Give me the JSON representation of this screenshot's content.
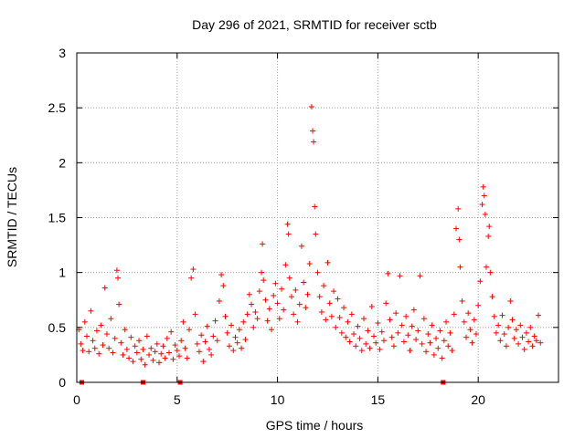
{
  "chart_data": {
    "type": "scatter",
    "title": "Day 296 of 2021, SRMTID for receiver sctb",
    "xlabel": "GPS time / hours",
    "ylabel": "SRMTID / TECUs",
    "xlim": [
      0,
      24
    ],
    "ylim": [
      0,
      3
    ],
    "xticks": [
      0,
      5,
      10,
      15,
      20
    ],
    "yticks": [
      0,
      0.5,
      1,
      1.5,
      2,
      2.5,
      3
    ],
    "ytick_labels": [
      "0",
      "0.5",
      "1",
      "1.5",
      "2",
      "2.5",
      "3"
    ],
    "grid": true,
    "marker": "+",
    "color": "#ff0000",
    "series": [
      {
        "name": "SRMTID",
        "points": [
          [
            0.1,
            0.48
          ],
          [
            0.2,
            0.35
          ],
          [
            0.3,
            0.29
          ],
          [
            0.4,
            0.55
          ],
          [
            0.5,
            0.42
          ],
          [
            0.6,
            0.28
          ],
          [
            0.7,
            0.65
          ],
          [
            0.8,
            0.38
          ],
          [
            0.9,
            0.31
          ],
          [
            1.0,
            0.47
          ],
          [
            1.1,
            0.26
          ],
          [
            1.2,
            0.52
          ],
          [
            1.3,
            0.34
          ],
          [
            1.4,
            0.86
          ],
          [
            1.5,
            0.44
          ],
          [
            1.6,
            0.31
          ],
          [
            1.7,
            0.58
          ],
          [
            1.8,
            0.27
          ],
          [
            1.9,
            0.4
          ],
          [
            2.0,
            1.02
          ],
          [
            2.05,
            0.95
          ],
          [
            2.1,
            0.71
          ],
          [
            2.2,
            0.36
          ],
          [
            2.3,
            0.25
          ],
          [
            2.4,
            0.48
          ],
          [
            2.5,
            0.3
          ],
          [
            2.6,
            0.22
          ],
          [
            2.7,
            0.41
          ],
          [
            2.8,
            0.19
          ],
          [
            2.9,
            0.33
          ],
          [
            3.0,
            0.27
          ],
          [
            3.1,
            0.38
          ],
          [
            3.2,
            0.21
          ],
          [
            3.3,
            0.3
          ],
          [
            3.4,
            0.16
          ],
          [
            3.5,
            0.42
          ],
          [
            3.6,
            0.25
          ],
          [
            3.7,
            0.31
          ],
          [
            3.8,
            0.2
          ],
          [
            3.9,
            0.28
          ],
          [
            4.0,
            0.35
          ],
          [
            4.1,
            0.18
          ],
          [
            4.2,
            0.26
          ],
          [
            4.3,
            0.33
          ],
          [
            4.4,
            0.22
          ],
          [
            4.5,
            0.4
          ],
          [
            4.6,
            0.27
          ],
          [
            4.7,
            0.46
          ],
          [
            4.8,
            0.21
          ],
          [
            4.9,
            0.34
          ],
          [
            5.0,
            0.29
          ],
          [
            5.1,
            0.24
          ],
          [
            5.2,
            0.38
          ],
          [
            5.3,
            0.55
          ],
          [
            5.4,
            0.31
          ],
          [
            5.5,
            0.22
          ],
          [
            5.6,
            0.48
          ],
          [
            5.7,
            0.95
          ],
          [
            5.8,
            1.03
          ],
          [
            5.9,
            0.62
          ],
          [
            6.0,
            0.35
          ],
          [
            6.1,
            0.28
          ],
          [
            6.2,
            0.43
          ],
          [
            6.3,
            0.19
          ],
          [
            6.4,
            0.37
          ],
          [
            6.5,
            0.51
          ],
          [
            6.6,
            0.3
          ],
          [
            6.7,
            0.25
          ],
          [
            6.8,
            0.42
          ],
          [
            6.9,
            0.56
          ],
          [
            7.0,
            0.38
          ],
          [
            7.1,
            0.74
          ],
          [
            7.2,
            0.98
          ],
          [
            7.3,
            0.88
          ],
          [
            7.4,
            0.6
          ],
          [
            7.5,
            0.45
          ],
          [
            7.6,
            0.33
          ],
          [
            7.7,
            0.52
          ],
          [
            7.8,
            0.29
          ],
          [
            7.9,
            0.41
          ],
          [
            8.0,
            0.36
          ],
          [
            8.1,
            0.48
          ],
          [
            8.2,
            0.31
          ],
          [
            8.3,
            0.55
          ],
          [
            8.4,
            0.39
          ],
          [
            8.5,
            0.62
          ],
          [
            8.6,
            0.8
          ],
          [
            8.7,
            0.71
          ],
          [
            8.8,
            0.5
          ],
          [
            8.9,
            0.64
          ],
          [
            9.0,
            0.58
          ],
          [
            9.1,
            0.83
          ],
          [
            9.2,
            1.0
          ],
          [
            9.25,
            1.26
          ],
          [
            9.3,
            0.93
          ],
          [
            9.4,
            0.75
          ],
          [
            9.5,
            0.56
          ],
          [
            9.6,
            0.67
          ],
          [
            9.7,
            0.48
          ],
          [
            9.8,
            0.79
          ],
          [
            9.9,
            0.9
          ],
          [
            10.0,
            0.72
          ],
          [
            10.1,
            0.58
          ],
          [
            10.2,
            0.85
          ],
          [
            10.3,
            0.66
          ],
          [
            10.4,
            1.07
          ],
          [
            10.5,
            1.44
          ],
          [
            10.55,
            1.35
          ],
          [
            10.6,
            0.95
          ],
          [
            10.7,
            0.78
          ],
          [
            10.8,
            0.62
          ],
          [
            10.9,
            0.84
          ],
          [
            11.0,
            0.55
          ],
          [
            11.1,
            0.71
          ],
          [
            11.2,
            1.24
          ],
          [
            11.3,
            0.91
          ],
          [
            11.4,
            0.68
          ],
          [
            11.5,
            0.8
          ],
          [
            11.6,
            1.08
          ],
          [
            11.7,
            2.51
          ],
          [
            11.75,
            2.29
          ],
          [
            11.8,
            2.19
          ],
          [
            11.85,
            1.6
          ],
          [
            11.9,
            1.35
          ],
          [
            12.0,
            1.0
          ],
          [
            12.1,
            0.78
          ],
          [
            12.2,
            0.64
          ],
          [
            12.3,
            0.88
          ],
          [
            12.4,
            0.57
          ],
          [
            12.5,
            1.09
          ],
          [
            12.6,
            0.72
          ],
          [
            12.7,
            0.6
          ],
          [
            12.8,
            0.83
          ],
          [
            12.9,
            0.5
          ],
          [
            13.0,
            0.76
          ],
          [
            13.1,
            0.59
          ],
          [
            13.2,
            0.45
          ],
          [
            13.3,
            0.68
          ],
          [
            13.4,
            0.41
          ],
          [
            13.5,
            0.55
          ],
          [
            13.6,
            0.37
          ],
          [
            13.7,
            0.62
          ],
          [
            13.8,
            0.44
          ],
          [
            13.9,
            0.33
          ],
          [
            14.0,
            0.51
          ],
          [
            14.1,
            0.4
          ],
          [
            14.2,
            0.29
          ],
          [
            14.3,
            0.58
          ],
          [
            14.4,
            0.35
          ],
          [
            14.5,
            0.47
          ],
          [
            14.6,
            0.31
          ],
          [
            14.7,
            0.69
          ],
          [
            14.8,
            0.42
          ],
          [
            14.9,
            0.36
          ],
          [
            15.0,
            0.54
          ],
          [
            15.1,
            0.3
          ],
          [
            15.2,
            0.46
          ],
          [
            15.3,
            0.38
          ],
          [
            15.4,
            0.72
          ],
          [
            15.5,
            0.99
          ],
          [
            15.6,
            0.57
          ],
          [
            15.7,
            0.41
          ],
          [
            15.8,
            0.33
          ],
          [
            15.9,
            0.63
          ],
          [
            16.0,
            0.45
          ],
          [
            16.1,
            0.97
          ],
          [
            16.2,
            0.52
          ],
          [
            16.3,
            0.37
          ],
          [
            16.4,
            0.6
          ],
          [
            16.5,
            0.43
          ],
          [
            16.6,
            0.29
          ],
          [
            16.7,
            0.51
          ],
          [
            16.8,
            0.66
          ],
          [
            16.9,
            0.39
          ],
          [
            17.0,
            0.47
          ],
          [
            17.1,
            0.97
          ],
          [
            17.2,
            0.35
          ],
          [
            17.3,
            0.58
          ],
          [
            17.4,
            0.28
          ],
          [
            17.5,
            0.44
          ],
          [
            17.6,
            0.36
          ],
          [
            17.7,
            0.52
          ],
          [
            17.8,
            0.25
          ],
          [
            17.9,
            0.4
          ],
          [
            18.0,
            0.31
          ],
          [
            18.1,
            0.47
          ],
          [
            18.2,
            0.22
          ],
          [
            18.3,
            0.38
          ],
          [
            18.4,
            0.55
          ],
          [
            18.5,
            0.33
          ],
          [
            18.6,
            0.45
          ],
          [
            18.7,
            0.29
          ],
          [
            18.8,
            0.62
          ],
          [
            18.9,
            1.4
          ],
          [
            19.0,
            1.58
          ],
          [
            19.05,
            1.3
          ],
          [
            19.1,
            1.05
          ],
          [
            19.2,
            0.74
          ],
          [
            19.3,
            0.55
          ],
          [
            19.4,
            0.41
          ],
          [
            19.5,
            0.63
          ],
          [
            19.6,
            0.48
          ],
          [
            19.7,
            0.36
          ],
          [
            19.8,
            0.57
          ],
          [
            19.9,
            0.44
          ],
          [
            20.0,
            0.7
          ],
          [
            20.1,
            0.92
          ],
          [
            20.2,
            1.62
          ],
          [
            20.25,
            1.78
          ],
          [
            20.3,
            1.7
          ],
          [
            20.35,
            1.53
          ],
          [
            20.4,
            1.05
          ],
          [
            20.5,
            1.33
          ],
          [
            20.55,
            1.42
          ],
          [
            20.6,
            1.0
          ],
          [
            20.7,
            0.78
          ],
          [
            20.8,
            0.6
          ],
          [
            20.9,
            0.45
          ],
          [
            21.0,
            0.52
          ],
          [
            21.1,
            0.38
          ],
          [
            21.2,
            0.61
          ],
          [
            21.3,
            0.44
          ],
          [
            21.4,
            0.33
          ],
          [
            21.5,
            0.5
          ],
          [
            21.6,
            0.74
          ],
          [
            21.7,
            0.57
          ],
          [
            21.8,
            0.4
          ],
          [
            21.9,
            0.48
          ],
          [
            22.0,
            0.35
          ],
          [
            22.1,
            0.52
          ],
          [
            22.2,
            0.41
          ],
          [
            22.3,
            0.3
          ],
          [
            22.4,
            0.45
          ],
          [
            22.5,
            0.37
          ],
          [
            22.6,
            0.5
          ],
          [
            22.7,
            0.33
          ],
          [
            22.8,
            0.42
          ],
          [
            22.9,
            0.38
          ],
          [
            23.0,
            0.61
          ],
          [
            23.1,
            0.36
          ]
        ]
      }
    ],
    "xaxis_markers": [
      0.25,
      3.3,
      5.15,
      18.25
    ]
  }
}
